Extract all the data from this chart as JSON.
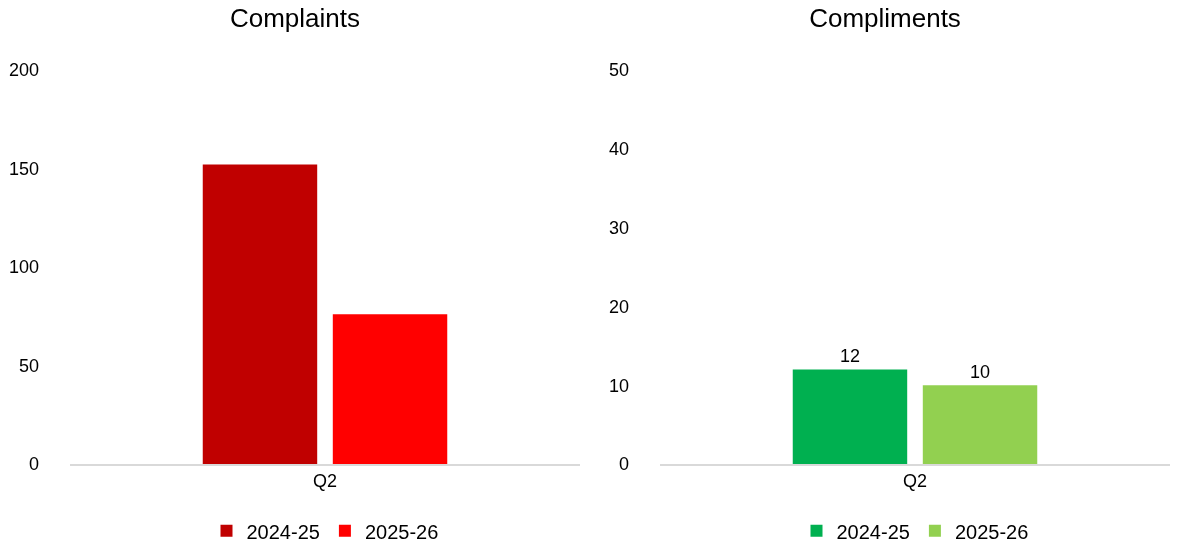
{
  "chart_data": [
    {
      "type": "bar",
      "title": "Complaints",
      "categories": [
        "Q2"
      ],
      "series": [
        {
          "name": "2024-25",
          "color": "#c00000",
          "values": [
            152
          ]
        },
        {
          "name": "2025-26",
          "color": "#ff0000",
          "values": [
            76
          ]
        }
      ],
      "ylim": [
        0,
        200
      ],
      "yticks": [
        0,
        50,
        100,
        150,
        200
      ],
      "grid": false,
      "legend": "bottom"
    },
    {
      "type": "bar",
      "title": "Compliments",
      "categories": [
        "Q2"
      ],
      "series": [
        {
          "name": "2024-25",
          "color": "#00b050",
          "values": [
            12
          ]
        },
        {
          "name": "2025-26",
          "color": "#92d050",
          "values": [
            10
          ]
        }
      ],
      "ylim": [
        0,
        50
      ],
      "yticks": [
        0,
        10,
        20,
        30,
        40,
        50
      ],
      "grid": false,
      "legend": "bottom",
      "data_labels": true
    }
  ]
}
